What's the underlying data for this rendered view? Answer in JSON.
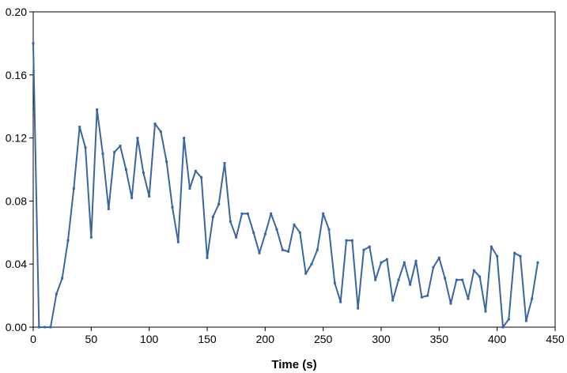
{
  "chart_data": {
    "type": "line",
    "title": "",
    "xlabel": "Time (s)",
    "ylabel": "",
    "xlim": [
      0,
      450
    ],
    "ylim": [
      0,
      0.2
    ],
    "grid": false,
    "x_ticks": [
      0,
      50,
      100,
      150,
      200,
      250,
      300,
      350,
      400,
      450
    ],
    "x_tick_labels": [
      "0",
      "50",
      "100",
      "150",
      "200",
      "250",
      "300",
      "350",
      "400",
      "450"
    ],
    "y_ticks": [
      0,
      0.04,
      0.08,
      0.12,
      0.16,
      0.2
    ],
    "y_tick_labels": [
      "0.00",
      "0.04",
      "0.08",
      "0.12",
      "0.16",
      "0.20"
    ],
    "colors": {
      "series": "#3a66a0",
      "axis": "#000000"
    },
    "series": [
      {
        "x": [
          0,
          5,
          10,
          15,
          20,
          25,
          30,
          35,
          40,
          45,
          50,
          55,
          60,
          65,
          70,
          75,
          80,
          85,
          90,
          95,
          100,
          105,
          110,
          115,
          120,
          125,
          130,
          135,
          140,
          145,
          150,
          155,
          160,
          165,
          170,
          175,
          180,
          185,
          190,
          195,
          200,
          205,
          210,
          215,
          220,
          225,
          230,
          235,
          240,
          245,
          250,
          255,
          260,
          265,
          270,
          275,
          280,
          285,
          290,
          295,
          300,
          305,
          310,
          315,
          320,
          325,
          330,
          335,
          340,
          345,
          350,
          355,
          360,
          365,
          370,
          375,
          380,
          385,
          390,
          395,
          400,
          405,
          410,
          415,
          420,
          425,
          430,
          435
        ],
        "y": [
          0.18,
          0.0,
          0.0,
          0.0,
          0.021,
          0.031,
          0.055,
          0.088,
          0.127,
          0.114,
          0.057,
          0.138,
          0.11,
          0.075,
          0.111,
          0.115,
          0.1,
          0.082,
          0.12,
          0.098,
          0.083,
          0.129,
          0.124,
          0.105,
          0.076,
          0.054,
          0.12,
          0.088,
          0.099,
          0.095,
          0.044,
          0.07,
          0.078,
          0.104,
          0.067,
          0.057,
          0.072,
          0.072,
          0.06,
          0.047,
          0.059,
          0.072,
          0.062,
          0.049,
          0.048,
          0.065,
          0.06,
          0.034,
          0.04,
          0.049,
          0.072,
          0.062,
          0.028,
          0.016,
          0.055,
          0.055,
          0.012,
          0.049,
          0.051,
          0.03,
          0.041,
          0.043,
          0.017,
          0.03,
          0.041,
          0.027,
          0.042,
          0.019,
          0.02,
          0.038,
          0.044,
          0.031,
          0.015,
          0.03,
          0.03,
          0.018,
          0.036,
          0.032,
          0.01,
          0.051,
          0.045,
          0.0,
          0.005,
          0.047,
          0.045,
          0.004,
          0.018,
          0.041
        ]
      }
    ]
  }
}
